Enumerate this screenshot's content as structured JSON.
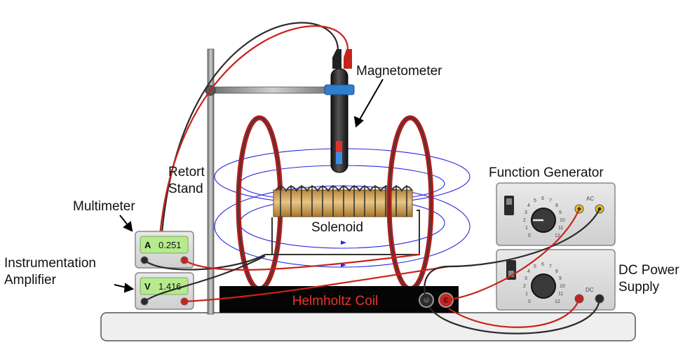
{
  "labels": {
    "magnetometer": "Magnetometer",
    "retort_line1": "Retort",
    "retort_line2": "Stand",
    "multimeter": "Multimeter",
    "amp_line1": "Instrumentation",
    "amp_line2": "Amplifier",
    "solenoid": "Solenoid",
    "function_generator": "Function Generator",
    "dc_line1": "DC Power",
    "dc_line2": "Supply",
    "helmholtz": "Helmholtz Coil"
  },
  "multimeter": {
    "unit": "A",
    "reading": "0.251"
  },
  "amplifier": {
    "unit": "V",
    "reading": "1.416"
  },
  "function_generator": {
    "output_tag": "AC",
    "power": "on"
  },
  "dc_supply": {
    "output_tag": "DC",
    "power": "off"
  },
  "dial_ticks": [
    "0",
    "1",
    "2",
    "3",
    "4",
    "5",
    "6",
    "7",
    "8",
    "9",
    "10",
    "11",
    "12"
  ],
  "colors": {
    "wire_red": "#c8231b",
    "wire_black": "#2b2b2b",
    "field_lines": "#2a2adf",
    "lcd_green": "#b6ea8e",
    "coil_copper": "#c99a52",
    "helmholtz_text": "#e8352c"
  }
}
